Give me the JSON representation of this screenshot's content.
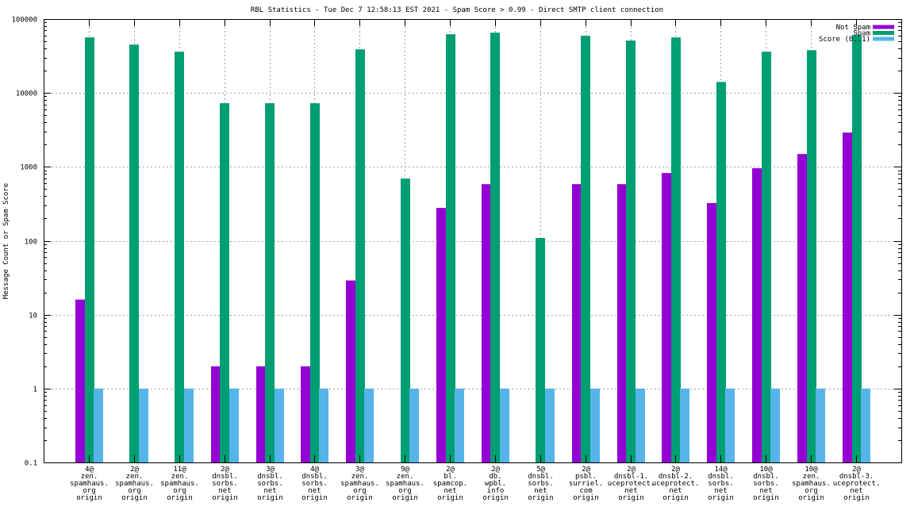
{
  "chart_data": {
    "type": "bar",
    "title": "RBL Statistics - Tue Dec  7 12:58:13 EST 2021 - Spam Score > 0.99 - Direct SMTP client connection",
    "xlabel": "",
    "ylabel": "Message Count or Spam Score",
    "yscale": "log",
    "ylim": [
      0.1,
      100000
    ],
    "yticks": [
      "0.1",
      "1",
      "10",
      "100",
      "1000",
      "10000",
      "100000"
    ],
    "ytick_values": [
      0.1,
      1,
      10,
      100,
      1000,
      10000,
      100000
    ],
    "grid": true,
    "legend_position": "top-right",
    "categories": [
      [
        "4@",
        "zen.",
        "spamhaus.",
        "org",
        "origin"
      ],
      [
        "2@",
        "zen.",
        "spamhaus.",
        "org",
        "origin"
      ],
      [
        "11@",
        "zen.",
        "spamhaus.",
        "org",
        "origin"
      ],
      [
        "2@",
        "dnsbl.",
        "sorbs.",
        "net",
        "origin"
      ],
      [
        "3@",
        "dnsbl.",
        "sorbs.",
        "net",
        "origin"
      ],
      [
        "4@",
        "dnsbl.",
        "sorbs.",
        "net",
        "origin"
      ],
      [
        "3@",
        "zen.",
        "spamhaus.",
        "org",
        "origin"
      ],
      [
        "9@",
        "zen.",
        "spamhaus.",
        "org",
        "origin"
      ],
      [
        "2@",
        "bl.",
        "spamcop.",
        "net",
        "origin"
      ],
      [
        "2@",
        "db.",
        "wpbl.",
        "info",
        "origin"
      ],
      [
        "5@",
        "dnsbl.",
        "sorbs.",
        "net",
        "origin"
      ],
      [
        "2@",
        "psbl.",
        "surriel.",
        "com",
        "origin"
      ],
      [
        "2@",
        "dnsbl-1.",
        "uceprotect.",
        "net",
        "origin"
      ],
      [
        "2@",
        "dnsbl-2.",
        "uceprotect.",
        "net",
        "origin"
      ],
      [
        "14@",
        "dnsbl.",
        "sorbs.",
        "net",
        "origin"
      ],
      [
        "10@",
        "dnsbl.",
        "sorbs.",
        "net",
        "origin"
      ],
      [
        "10@",
        "zen.",
        "spamhaus.",
        "org",
        "origin"
      ],
      [
        "2@",
        "dnsbl-3.",
        "uceprotect.",
        "net",
        "origin"
      ]
    ],
    "series": [
      {
        "name": "Not Spam",
        "color": "#9400D3",
        "values": [
          16,
          null,
          null,
          2,
          2,
          2,
          29,
          null,
          278,
          583,
          null,
          583,
          583,
          825,
          323,
          957,
          1490,
          2910
        ]
      },
      {
        "name": "Spam",
        "color": "#009E73",
        "values": [
          56400,
          45100,
          36100,
          7260,
          7260,
          7260,
          38900,
          693,
          62200,
          65400,
          109,
          59300,
          51100,
          56400,
          14100,
          36100,
          37900,
          60700
        ]
      },
      {
        "name": "Score (0..1)",
        "color": "#56B4E9",
        "values": [
          1,
          1,
          1,
          1,
          1,
          1,
          1,
          1,
          1,
          1,
          1,
          1,
          1,
          1,
          1,
          1,
          1,
          1
        ]
      }
    ]
  }
}
